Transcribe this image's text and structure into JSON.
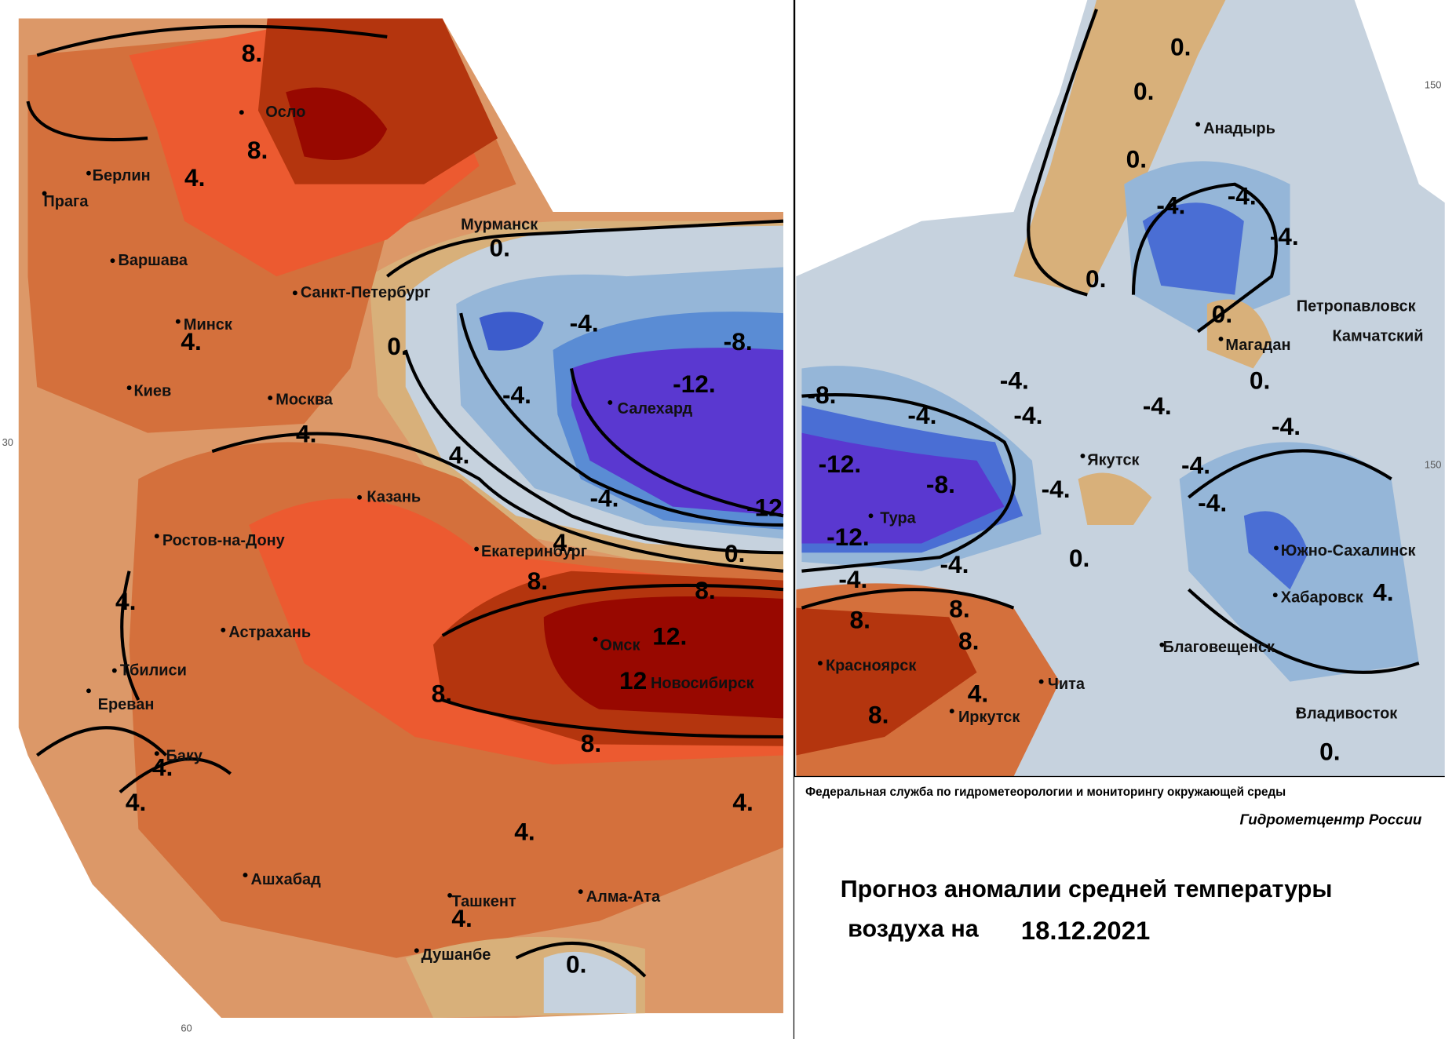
{
  "cities": [
    "Осло",
    "Берлин",
    "Прага",
    "Варшава",
    "Мурманск",
    "Санкт-Петербург",
    "Минск",
    "Киев",
    "Москва",
    "Салехард",
    "Казань",
    "Ростов-на-Дону",
    "Екатеринбург",
    "Астрахань",
    "Омск",
    "Новосибирск",
    "Тбилиси",
    "Ереван",
    "Баку",
    "Ашхабад",
    "Ташкент",
    "Алма-Ата",
    "Душанбе",
    "Анадырь",
    "Петропавловск",
    "Камчатский",
    "Магадан",
    "Якутск",
    "Тура",
    "Южно-Сахалинск",
    "Хабаровск",
    "Благовещенск",
    "Красноярск",
    "Чита",
    "Иркутск",
    "Владивосток"
  ],
  "contour_labels": [
    "8.",
    "8.",
    "4.",
    "0.",
    "-4.",
    "0.",
    "4.",
    "-4.",
    "-8.",
    "-12.",
    "4.",
    "4.",
    "-4.",
    "-12",
    "4.",
    "0.",
    "8.",
    "8.",
    "4.",
    "12.",
    "12",
    "8.",
    "8.",
    "4.",
    "4.",
    "4.",
    "4.",
    "4.",
    "0.",
    "0.",
    "0.",
    "0.",
    "-4.",
    "-4.",
    "-4.",
    "0.",
    "0.",
    "0.",
    "-8.",
    "-4.",
    "-4.",
    "-4.",
    "-4.",
    "-4.",
    "-4.",
    "-12.",
    "-8.",
    "-4.",
    "-4.",
    "-12.",
    "0.",
    "-4.",
    "-4.",
    "8.",
    "8.",
    "8.",
    "4.",
    "8.",
    "4.",
    "0."
  ],
  "grid_labels": [
    "30",
    "60",
    "150",
    "150"
  ],
  "footer": {
    "agency": "Федеральная служба по гидрометеорологии и мониторингу окружающей среды",
    "center": "Гидрометцентр России",
    "title_line1": "Прогноз аномалии средней температуры",
    "title_line2": "воздуха на",
    "date": "18.12.2021"
  }
}
